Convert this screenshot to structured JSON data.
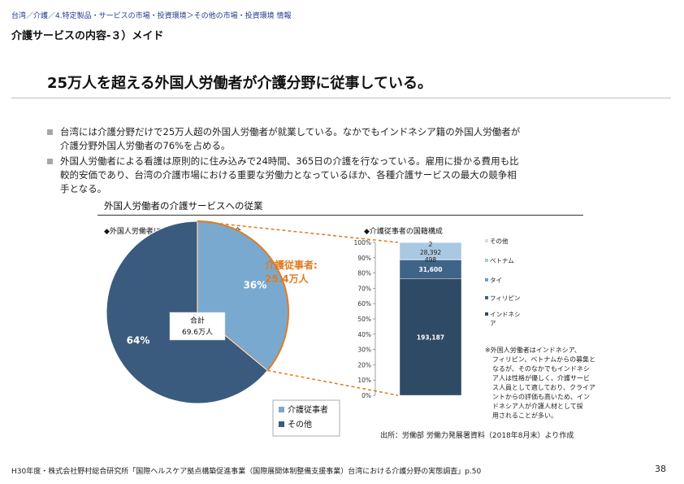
{
  "header": {
    "breadcrumb": "台湾／介護／4.特定製品・サービスの市場・投資環境＞その他の市場・投資環境 情報",
    "section_title": "介護サービスの内容‐３）メイド"
  },
  "headline": "25万人を超える外国人労働者が介護分野に従事している。",
  "bullets": [
    {
      "lines": [
        "台湾には介護分野だけで25万人超の外国人労働者が就業している。なかでもインドネシア籍の外国人労働者が",
        "介護分野外国人労働者の76%を占める。"
      ]
    },
    {
      "lines": [
        "外国人労働者による看護は原則的に住み込みで24時間、365日の介護を行なっている。雇用に掛かる費用も比",
        "較的安価であり、台湾の介護市場における重要な労働力となっているほか、各種介護サービスの最大の競争相",
        "手となる。"
      ]
    }
  ],
  "chart_section_title": "外国人労働者の介護サービスへの従業",
  "colors": {
    "pie_care": "#7aa9cf",
    "pie_other": "#3b5b7e",
    "accent_orange": "#e07b21",
    "stack_indonesia": "#2f4a64",
    "stack_philippines": "#3e6487",
    "stack_thai": "#6f9fc6",
    "stack_vietnam": "#a9c8e2",
    "stack_other": "#cfdfee"
  },
  "chart_data": [
    {
      "type": "pie",
      "title": "◆外国人労働者に占める介護従事者の割合",
      "slices": [
        {
          "label": "介護従事者",
          "value": 36,
          "display": "36%"
        },
        {
          "label": "その他",
          "value": 64,
          "display": "64%"
        }
      ],
      "center_label": [
        "合計",
        "69.6万人"
      ],
      "callout": [
        "介護従事者:",
        "25.4万人"
      ],
      "legend": [
        "介護従事者",
        "その他"
      ]
    },
    {
      "type": "bar",
      "stacked": true,
      "percent": true,
      "title": "◆介護従事者の国籍構成",
      "y_ticks": [
        "0%",
        "10%",
        "20%",
        "30%",
        "40%",
        "50%",
        "60%",
        "70%",
        "80%",
        "90%",
        "100%"
      ],
      "ylim": [
        0,
        100
      ],
      "series": [
        {
          "name": "インドネシア",
          "value": 193187,
          "label": "193,187"
        },
        {
          "name": "フィリピン",
          "value": 31600,
          "label": "31,600"
        },
        {
          "name": "タイ",
          "value": 498,
          "label": "498"
        },
        {
          "name": "ベトナム",
          "value": 28392,
          "label": "28,392"
        },
        {
          "name": "その他",
          "value": 2,
          "label": "2"
        }
      ],
      "legend_order": [
        "その他",
        "ベトナム",
        "タイ",
        "フィリピン",
        "インドネシア"
      ]
    }
  ],
  "note": [
    "※外国人労働者はインドネシア、",
    "フィリピン、ベトナムからの募集と",
    "なるが、そのなかでもインドネシ",
    "ア人は性格が優しく、介護サービ",
    "ス人員として適しており、クライア",
    "ントからの評価も高いため、イン",
    "ドネシア人が介護人材として採",
    "用されることが多い。"
  ],
  "source": "出所：労働部 労働力発展署資料（2018年8月末）より作成",
  "footer": "H30年度・株式会社野村総合研究所「国際ヘルスケア拠点構築促進事業（国際展開体制整備支援事業）台湾における介護分野の実態調査」p.50",
  "page_number": "38"
}
